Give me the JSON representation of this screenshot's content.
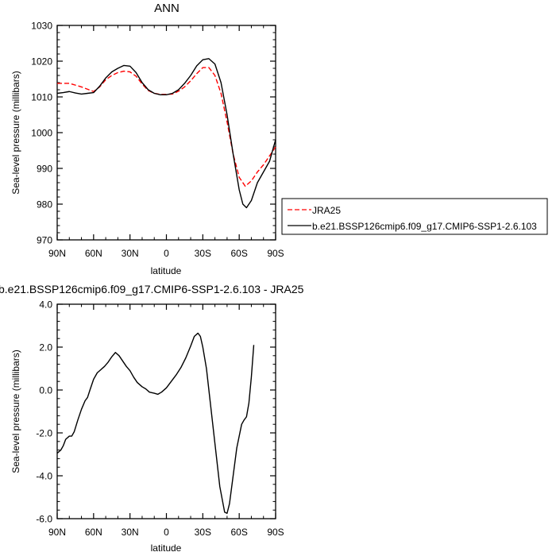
{
  "chart_data": [
    {
      "type": "line",
      "title": "ANN",
      "xlabel": "latitude",
      "ylabel": "Sea-level pressure (millibars)",
      "xlim": [
        90,
        -90
      ],
      "ylim": [
        970,
        1030
      ],
      "xticks": [
        90,
        60,
        30,
        0,
        -30,
        -60,
        -90
      ],
      "xtick_labels": [
        "90N",
        "60N",
        "30N",
        "0",
        "30S",
        "60S",
        "90S"
      ],
      "yticks": [
        970,
        980,
        990,
        1000,
        1010,
        1020,
        1030
      ],
      "ytick_labels": [
        "970",
        "980",
        "990",
        "1000",
        "1010",
        "1020",
        "1030"
      ],
      "grid": false,
      "legend_position": "right",
      "series": [
        {
          "name": "JRA25",
          "color": "#ff0000",
          "dash": "dashed",
          "points": [
            [
              90,
              1013.8
            ],
            [
              80,
              1013.8
            ],
            [
              70,
              1012.8
            ],
            [
              60,
              1011.5
            ],
            [
              55,
              1012.8
            ],
            [
              50,
              1014.8
            ],
            [
              45,
              1016
            ],
            [
              40,
              1016.8
            ],
            [
              35,
              1017.2
            ],
            [
              30,
              1017
            ],
            [
              25,
              1015.8
            ],
            [
              20,
              1013.6
            ],
            [
              15,
              1011.8
            ],
            [
              10,
              1011
            ],
            [
              5,
              1010.7
            ],
            [
              0,
              1010.7
            ],
            [
              -5,
              1010.8
            ],
            [
              -10,
              1011.6
            ],
            [
              -15,
              1012.8
            ],
            [
              -20,
              1014.5
            ],
            [
              -25,
              1016.5
            ],
            [
              -30,
              1018.2
            ],
            [
              -35,
              1018.2
            ],
            [
              -40,
              1016
            ],
            [
              -45,
              1011
            ],
            [
              -50,
              1003
            ],
            [
              -55,
              994
            ],
            [
              -60,
              987.5
            ],
            [
              -65,
              985
            ],
            [
              -70,
              986.5
            ],
            [
              -75,
              989
            ],
            [
              -80,
              991
            ],
            [
              -85,
              993.5
            ],
            [
              -90,
              996
            ]
          ]
        },
        {
          "name": "b.e21.BSSP126cmip6.f09_g17.CMIP6-SSP1-2.6.103",
          "color": "#000000",
          "dash": "solid",
          "points": [
            [
              90,
              1011
            ],
            [
              85,
              1011.2
            ],
            [
              80,
              1011.5
            ],
            [
              75,
              1011.1
            ],
            [
              70,
              1010.8
            ],
            [
              65,
              1011
            ],
            [
              60,
              1011.2
            ],
            [
              55,
              1013
            ],
            [
              50,
              1015.3
            ],
            [
              45,
              1017
            ],
            [
              40,
              1018
            ],
            [
              35,
              1018.8
            ],
            [
              30,
              1018.6
            ],
            [
              25,
              1016.8
            ],
            [
              20,
              1014
            ],
            [
              15,
              1012
            ],
            [
              10,
              1011
            ],
            [
              5,
              1010.6
            ],
            [
              0,
              1010.6
            ],
            [
              -5,
              1011
            ],
            [
              -10,
              1012
            ],
            [
              -15,
              1013.8
            ],
            [
              -20,
              1016
            ],
            [
              -25,
              1018.7
            ],
            [
              -30,
              1020.4
            ],
            [
              -35,
              1020.7
            ],
            [
              -40,
              1019.2
            ],
            [
              -45,
              1014
            ],
            [
              -50,
              1005
            ],
            [
              -55,
              994
            ],
            [
              -60,
              984
            ],
            [
              -63,
              980
            ],
            [
              -66,
              979
            ],
            [
              -70,
              981
            ],
            [
              -75,
              986
            ],
            [
              -80,
              989
            ],
            [
              -85,
              992
            ],
            [
              -90,
              998
            ]
          ]
        }
      ]
    },
    {
      "type": "line",
      "title": "b.e21.BSSP126cmip6.f09_g17.CMIP6-SSP1-2.6.103 - JRA25",
      "xlabel": "latitude",
      "ylabel": "Sea-level pressure (millibars)",
      "xlim": [
        90,
        -90
      ],
      "ylim": [
        -6,
        4
      ],
      "xticks": [
        90,
        60,
        30,
        0,
        -30,
        -60,
        -90
      ],
      "xtick_labels": [
        "90N",
        "60N",
        "30N",
        "0",
        "30S",
        "60S",
        "90S"
      ],
      "yticks": [
        -6,
        -4,
        -2,
        0,
        2,
        4
      ],
      "ytick_labels": [
        "-6.0",
        "-4.0",
        "-2.0",
        "0.0",
        "2.0",
        "4.0"
      ],
      "grid": false,
      "series": [
        {
          "color": "#000000",
          "dash": "solid",
          "points": [
            [
              90,
              -2.95
            ],
            [
              87,
              -2.8
            ],
            [
              85,
              -2.6
            ],
            [
              83,
              -2.3
            ],
            [
              80,
              -2.15
            ],
            [
              78,
              -2.15
            ],
            [
              76,
              -1.95
            ],
            [
              73,
              -1.4
            ],
            [
              70,
              -0.9
            ],
            [
              67,
              -0.5
            ],
            [
              65,
              -0.35
            ],
            [
              63,
              0
            ],
            [
              60,
              0.5
            ],
            [
              57,
              0.8
            ],
            [
              54,
              0.95
            ],
            [
              51,
              1.1
            ],
            [
              48,
              1.3
            ],
            [
              45,
              1.55
            ],
            [
              42,
              1.75
            ],
            [
              39,
              1.6
            ],
            [
              36,
              1.35
            ],
            [
              33,
              1.1
            ],
            [
              30,
              0.9
            ],
            [
              27,
              0.6
            ],
            [
              24,
              0.35
            ],
            [
              20,
              0.15
            ],
            [
              17,
              0.05
            ],
            [
              14,
              -0.1
            ],
            [
              10,
              -0.15
            ],
            [
              7,
              -0.2
            ],
            [
              4,
              -0.1
            ],
            [
              0,
              0.1
            ],
            [
              -4,
              0.4
            ],
            [
              -8,
              0.7
            ],
            [
              -12,
              1.05
            ],
            [
              -16,
              1.5
            ],
            [
              -20,
              2.05
            ],
            [
              -23,
              2.5
            ],
            [
              -26,
              2.65
            ],
            [
              -28,
              2.5
            ],
            [
              -30,
              2.0
            ],
            [
              -33,
              1.0
            ],
            [
              -36,
              -0.5
            ],
            [
              -40,
              -2.5
            ],
            [
              -44,
              -4.5
            ],
            [
              -48,
              -5.7
            ],
            [
              -50,
              -5.75
            ],
            [
              -52,
              -5.3
            ],
            [
              -55,
              -4.0
            ],
            [
              -58,
              -2.7
            ],
            [
              -62,
              -1.6
            ],
            [
              -64,
              -1.4
            ],
            [
              -66,
              -1.25
            ],
            [
              -68,
              -0.6
            ],
            [
              -70,
              0.6
            ],
            [
              -72,
              2.1
            ]
          ]
        }
      ]
    }
  ]
}
